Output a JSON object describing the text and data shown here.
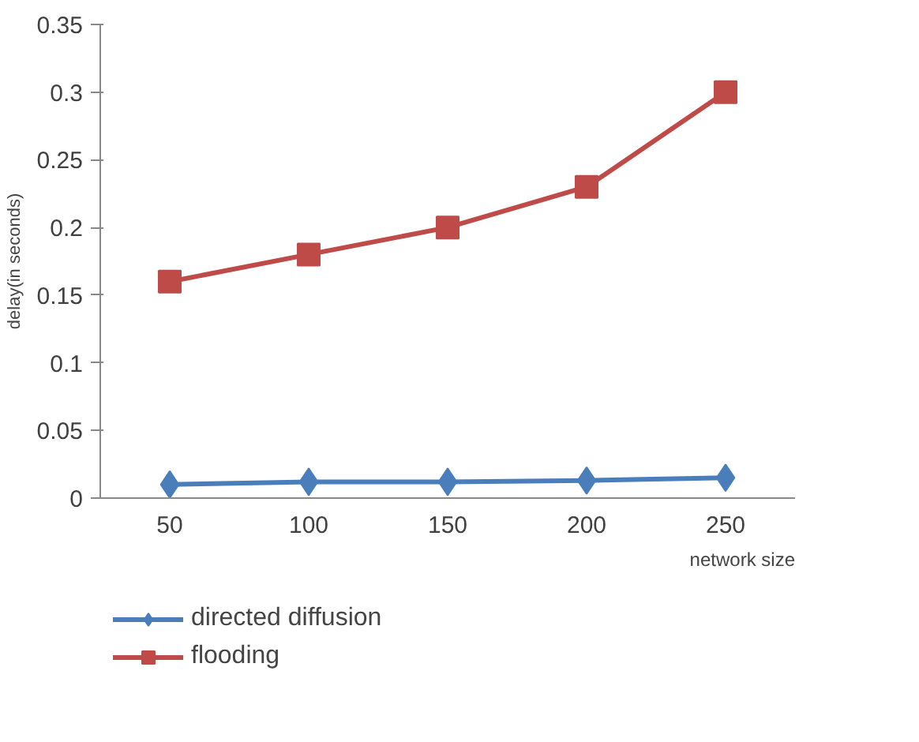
{
  "chart_data": {
    "type": "line",
    "xlabel": "network size",
    "ylabel": "delay(in seconds)",
    "categories": [
      "50",
      "100",
      "150",
      "200",
      "250"
    ],
    "series": [
      {
        "name": "directed diffusion",
        "color": "#4a7ebb",
        "marker": "diamond",
        "values": [
          0.01,
          0.012,
          0.012,
          0.013,
          0.015
        ]
      },
      {
        "name": "flooding",
        "color": "#be4b48",
        "marker": "square",
        "values": [
          0.16,
          0.18,
          0.2,
          0.23,
          0.3
        ]
      }
    ],
    "ylim": [
      0,
      0.35
    ],
    "yticks": [
      0,
      0.05,
      0.1,
      0.15,
      0.2,
      0.25,
      0.3,
      0.35
    ],
    "grid": false,
    "legend": "bottom",
    "line_style": "solid"
  }
}
